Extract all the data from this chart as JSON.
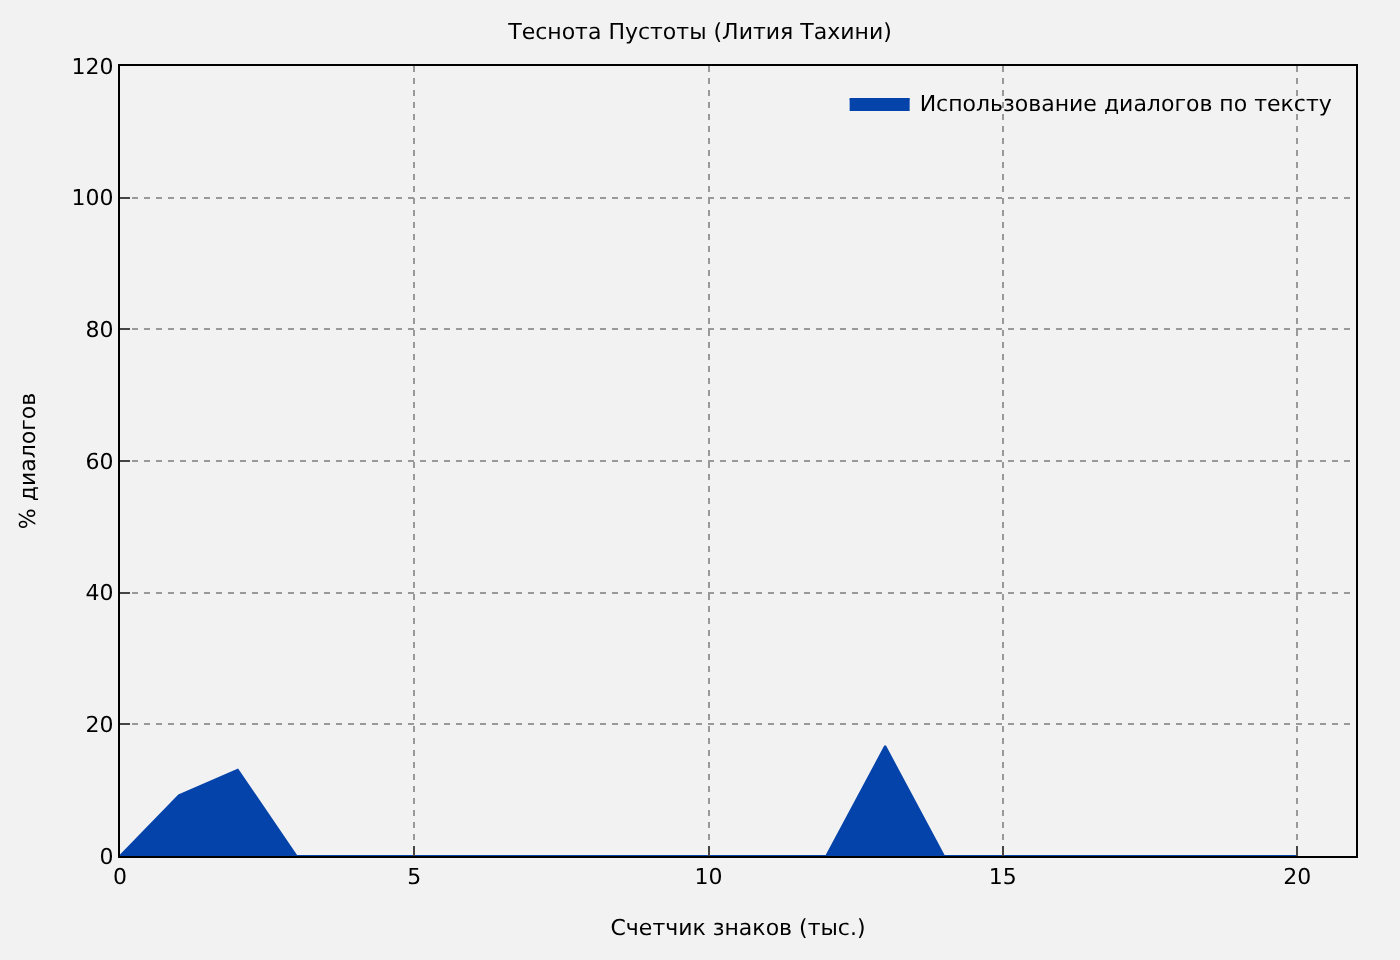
{
  "chart_data": {
    "type": "area",
    "title": "Теснота Пустоты (Лития Тахини)",
    "xlabel": "Счетчик знаков (тыс.)",
    "ylabel": "% диалогов",
    "x": [
      0,
      1,
      2,
      3,
      4,
      5,
      6,
      7,
      8,
      9,
      10,
      11,
      12,
      13,
      14,
      15,
      16,
      17,
      18,
      19,
      20
    ],
    "series": [
      {
        "name": "Использование диалогов по тексту",
        "color": "#0443aa",
        "values": [
          0,
          9.2,
          13.1,
          0,
          0,
          0,
          0,
          0,
          0,
          0,
          0,
          0,
          0,
          16.7,
          0,
          0,
          0,
          0,
          0,
          0,
          0
        ]
      }
    ],
    "xlim": [
      0,
      21
    ],
    "xticks": [
      0,
      5,
      10,
      15,
      20
    ],
    "ylim": [
      0,
      120
    ],
    "yticks": [
      0,
      20,
      40,
      60,
      80,
      100,
      120
    ],
    "grid": true,
    "legend": "top right"
  }
}
